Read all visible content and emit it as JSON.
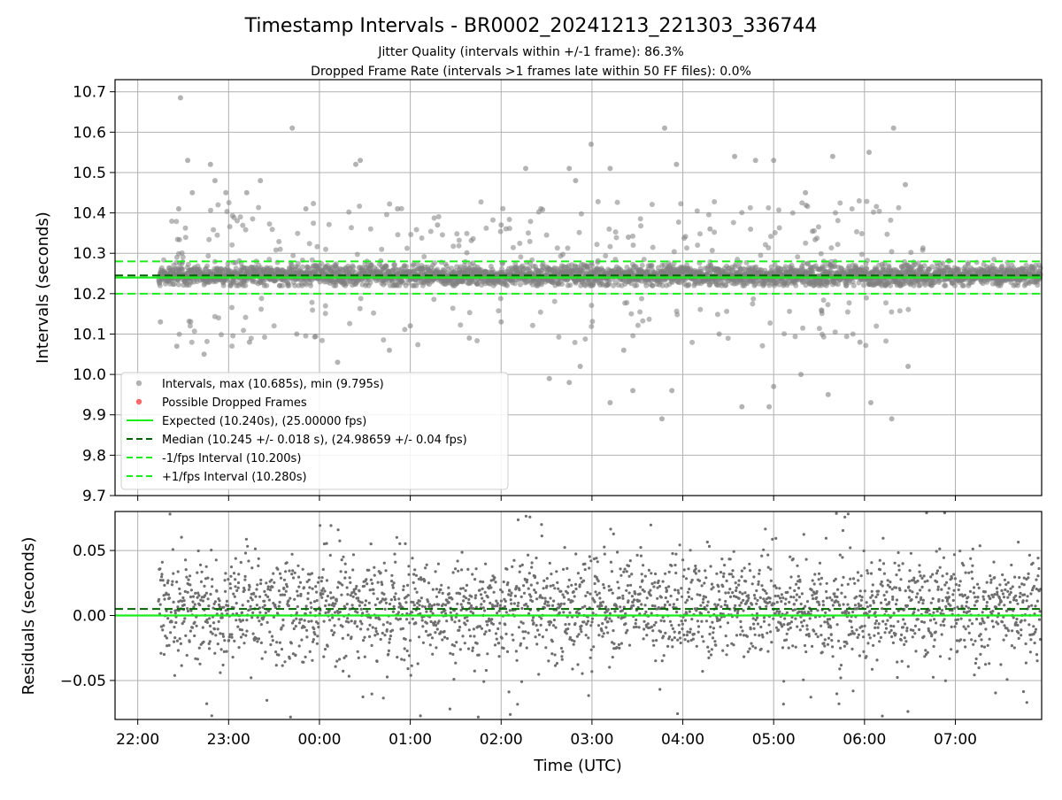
{
  "title": "Timestamp Intervals - BR0002_20241213_221303_336744",
  "subtitle_lines": [
    "Jitter Quality (intervals within +/-1 frame): 86.3%",
    "Dropped Frame Rate (intervals >1 frames late within 50 FF files): 0.0%"
  ],
  "colors": {
    "points": "#808080",
    "dropped": "#ff4d4d",
    "expected": "#1aee1a",
    "median": "#006400",
    "fps_bounds": "#1aee1a",
    "grid": "#b0b0b0"
  },
  "chart_data": [
    {
      "type": "scatter",
      "panel": "top",
      "ylabel": "Intervals (seconds)",
      "ylim": [
        9.7,
        10.73
      ],
      "xlim_hours": [
        -2.25,
        7.95
      ],
      "yticks": [
        "9.7",
        "9.8",
        "9.9",
        "10.0",
        "10.1",
        "10.2",
        "10.3",
        "10.4",
        "10.5",
        "10.6",
        "10.7"
      ],
      "ytick_values": [
        9.7,
        9.8,
        9.9,
        10.0,
        10.1,
        10.2,
        10.3,
        10.4,
        10.5,
        10.6,
        10.7
      ],
      "grid": true,
      "legend_position": "lower-left",
      "legend": [
        {
          "label": "Intervals, max (10.685s), min (9.795s)",
          "kind": "point",
          "color": "#808080"
        },
        {
          "label": "Possible Dropped Frames",
          "kind": "point",
          "color": "#ff4d4d"
        },
        {
          "label": "Expected (10.240s), (25.00000 fps)",
          "kind": "solid",
          "color": "#1aee1a"
        },
        {
          "label": "Median (10.245 +/- 0.018 s), (24.98659 +/- 0.04 fps)",
          "kind": "dashed",
          "color": "#006400"
        },
        {
          "label": "-1/fps Interval (10.200s)",
          "kind": "dashed",
          "color": "#1aee1a"
        },
        {
          "label": "+1/fps Interval (10.280s)",
          "kind": "dashed",
          "color": "#1aee1a"
        }
      ],
      "reference_lines": {
        "expected": 10.24,
        "median": 10.245,
        "minus_1fps": 10.2,
        "plus_1fps": 10.28
      },
      "series": [
        {
          "kind": "intervals",
          "x_start_hours": -1.77,
          "x_end_hours": 7.95,
          "count": 3400,
          "median": 10.245,
          "band": [
            10.22,
            10.285
          ],
          "max": 10.685,
          "min": 9.795,
          "outliers": [
            [
              -1.53,
              10.685
            ],
            [
              -1.45,
              10.53
            ],
            [
              -1.4,
              10.45
            ],
            [
              -1.55,
              10.41
            ],
            [
              -1.2,
              10.52
            ],
            [
              -1.15,
              10.48
            ],
            [
              -1.03,
              10.45
            ],
            [
              -0.8,
              10.45
            ],
            [
              -0.65,
              10.48
            ],
            [
              -0.3,
              10.61
            ],
            [
              -0.15,
              10.41
            ],
            [
              0.4,
              10.52
            ],
            [
              0.45,
              10.53
            ],
            [
              0.86,
              10.41
            ],
            [
              2.27,
              10.51
            ],
            [
              2.75,
              10.51
            ],
            [
              2.82,
              10.48
            ],
            [
              2.99,
              10.57
            ],
            [
              3.2,
              10.51
            ],
            [
              3.8,
              10.61
            ],
            [
              3.93,
              10.52
            ],
            [
              4.3,
              10.36
            ],
            [
              4.57,
              10.54
            ],
            [
              4.8,
              10.53
            ],
            [
              5.0,
              10.53
            ],
            [
              5.65,
              10.54
            ],
            [
              6.05,
              10.55
            ],
            [
              6.32,
              10.61
            ],
            [
              6.45,
              10.47
            ],
            [
              1.3,
              10.37
            ],
            [
              2.0,
              10.37
            ],
            [
              3.4,
              10.34
            ],
            [
              5.35,
              10.45
            ],
            [
              -1.75,
              10.13
            ],
            [
              -1.57,
              10.07
            ],
            [
              -1.27,
              10.05
            ],
            [
              -0.77,
              10.08
            ],
            [
              -0.25,
              10.1
            ],
            [
              0.2,
              10.03
            ],
            [
              0.77,
              10.06
            ],
            [
              1.0,
              10.12
            ],
            [
              2.0,
              10.13
            ],
            [
              2.53,
              9.99
            ],
            [
              2.75,
              9.98
            ],
            [
              2.87,
              10.02
            ],
            [
              3.2,
              9.93
            ],
            [
              3.45,
              9.96
            ],
            [
              3.77,
              9.89
            ],
            [
              3.88,
              9.96
            ],
            [
              4.65,
              9.92
            ],
            [
              4.95,
              9.92
            ],
            [
              5.0,
              9.97
            ],
            [
              5.3,
              10.0
            ],
            [
              5.6,
              9.95
            ],
            [
              6.07,
              9.93
            ],
            [
              6.3,
              9.89
            ],
            [
              6.48,
              10.02
            ],
            [
              5.95,
              10.08
            ],
            [
              4.4,
              10.1
            ],
            [
              3.35,
              10.06
            ],
            [
              1.65,
              10.09
            ]
          ]
        }
      ]
    },
    {
      "type": "scatter",
      "panel": "bottom",
      "ylabel": "Residuals (seconds)",
      "xlabel": "Time (UTC)",
      "ylim": [
        -0.08,
        0.08
      ],
      "xlim_hours": [
        -2.25,
        7.95
      ],
      "yticks": [
        "−0.05",
        "0.00",
        "0.05"
      ],
      "ytick_values": [
        -0.05,
        0.0,
        0.05
      ],
      "xticks": [
        "22:00",
        "23:00",
        "00:00",
        "01:00",
        "02:00",
        "03:00",
        "04:00",
        "05:00",
        "06:00",
        "07:00"
      ],
      "xtick_hours": [
        -2,
        -1,
        0,
        1,
        2,
        3,
        4,
        5,
        6,
        7
      ],
      "grid": true,
      "reference_lines": {
        "expected": 0.0,
        "median": 0.005
      },
      "series": [
        {
          "kind": "residuals",
          "x_start_hours": -1.77,
          "x_end_hours": 7.95,
          "count": 2600,
          "band": [
            -0.03,
            0.04
          ]
        }
      ]
    }
  ]
}
